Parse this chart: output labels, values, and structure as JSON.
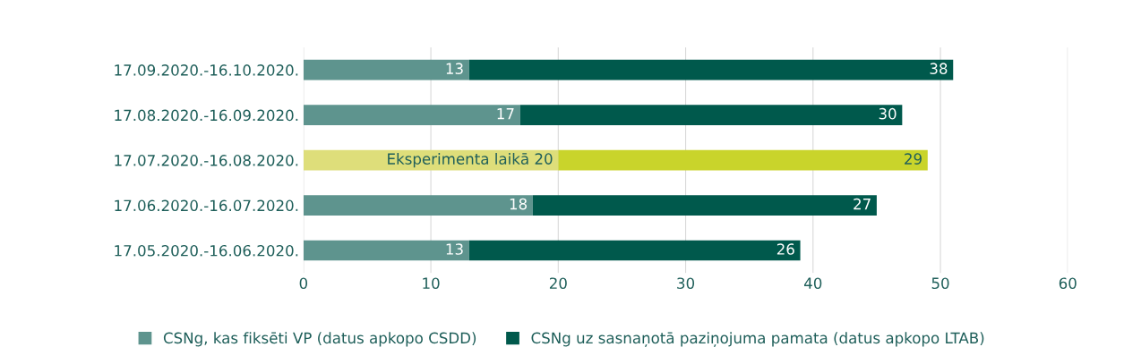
{
  "chart_data": {
    "type": "bar",
    "orientation": "horizontal",
    "stacked": true,
    "categories": [
      "17.09.2020.-16.10.2020.",
      "17.08.2020.-16.09.2020.",
      "17.07.2020.-16.08.2020.",
      "17.06.2020.-16.07.2020.",
      "17.05.2020.-16.06.2020."
    ],
    "series": [
      {
        "name": "CSNg, kas fiksēti VP (datus apkopo CSDD)",
        "color": "#5e948e",
        "colors": [
          "#5e948e",
          "#5e948e",
          "#dede7a",
          "#5e948e",
          "#5e948e"
        ],
        "values": [
          13,
          17,
          20,
          18,
          13
        ],
        "value_labels": [
          "13",
          "17",
          "Eksperimenta laikā 20",
          "18",
          "13"
        ]
      },
      {
        "name": "CSNg uz sasnaņotā paziņojuma pamata (datus apkopo LTAB)",
        "color": "#00594c",
        "colors": [
          "#00594c",
          "#00594c",
          "#c9d42b",
          "#00594c",
          "#00594c"
        ],
        "values": [
          38,
          30,
          29,
          27,
          26
        ],
        "value_labels": [
          "38",
          "30",
          "29",
          "27",
          "26"
        ]
      }
    ],
    "xlim": [
      0,
      60
    ],
    "xticks": [
      0,
      10,
      20,
      30,
      40,
      50,
      60
    ],
    "grid": "x",
    "legend": "bottom"
  }
}
